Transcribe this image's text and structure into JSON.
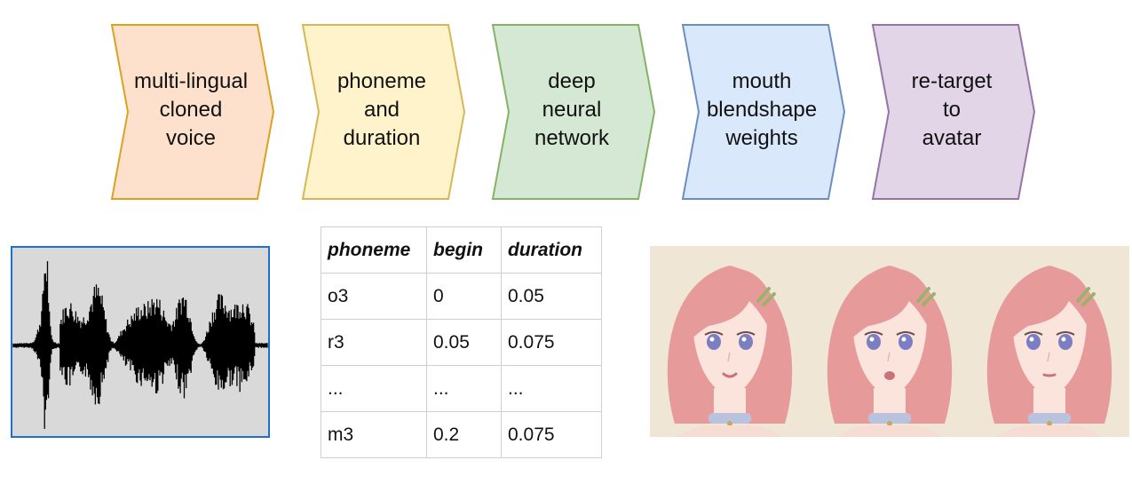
{
  "pipeline": {
    "steps": [
      {
        "lines": [
          "multi-lingual",
          "cloned",
          "voice"
        ],
        "fill": "#fde1cc",
        "stroke": "#d9a220"
      },
      {
        "lines": [
          "phoneme",
          "and",
          "duration"
        ],
        "fill": "#fff3cc",
        "stroke": "#d6b656"
      },
      {
        "lines": [
          "deep",
          "neural",
          "network"
        ],
        "fill": "#d5e8d4",
        "stroke": "#82b366"
      },
      {
        "lines": [
          "mouth",
          "blendshape",
          "weights"
        ],
        "fill": "#dae8fc",
        "stroke": "#6c8ebf"
      },
      {
        "lines": [
          "re-target",
          "to",
          "avatar"
        ],
        "fill": "#e1d5e7",
        "stroke": "#9673a6"
      }
    ]
  },
  "waveform": {
    "background": "#d9d9d9",
    "border": "#1f6fd1",
    "signal": "#000000"
  },
  "phoneme_table": {
    "headers": [
      "phoneme",
      "begin",
      "duration"
    ],
    "rows": [
      [
        "o3",
        "0",
        "0.05"
      ],
      [
        "r3",
        "0.05",
        "0.075"
      ],
      [
        "...",
        "...",
        "..."
      ],
      [
        "m3",
        "0.2",
        "0.075"
      ]
    ]
  },
  "avatars": {
    "count": 3,
    "background": "#efe6d5",
    "hair": "#e79a9a",
    "skin": "#fbe4dc",
    "eyes": "#7b7fc2"
  }
}
